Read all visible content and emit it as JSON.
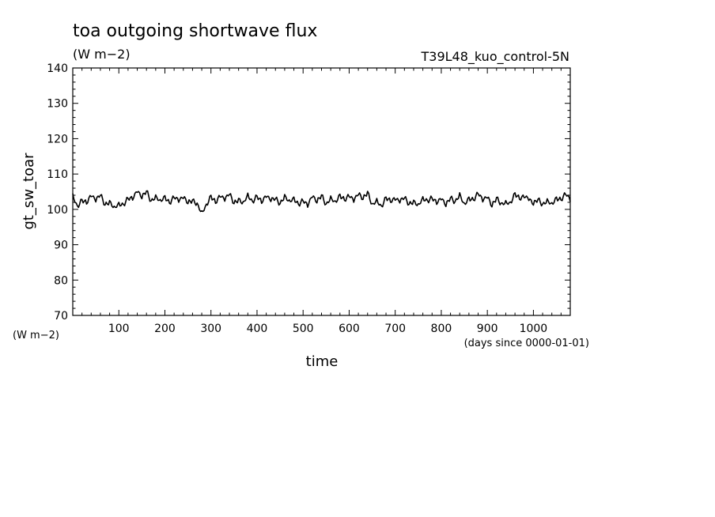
{
  "chart_data": {
    "type": "line",
    "title": "toa outgoing shortwave flux",
    "units": "(W m−2)",
    "run_label": "T39L48_kuo_control-5N",
    "ylabel": "gt_sw_toar",
    "y_units": "(W m−2)",
    "xlabel": "time",
    "x_units": "(days since 0000-01-01)",
    "xlim": [
      0,
      1080
    ],
    "ylim": [
      70,
      140
    ],
    "x_ticks": [
      100,
      200,
      300,
      400,
      500,
      600,
      700,
      800,
      900,
      1000
    ],
    "y_ticks": [
      70,
      80,
      90,
      100,
      110,
      120,
      130,
      140
    ],
    "grid": false,
    "legend": "none",
    "line_color": "#000000",
    "series": [
      {
        "x": [
          0,
          10,
          20,
          30,
          40,
          50,
          60,
          70,
          80,
          90,
          100,
          110,
          120,
          130,
          140,
          150,
          160,
          170,
          180,
          190,
          200,
          210,
          220,
          230,
          240,
          250,
          260,
          270,
          280,
          290,
          300,
          310,
          320,
          330,
          340,
          350,
          360,
          370,
          380,
          390,
          400,
          410,
          420,
          430,
          440,
          450,
          460,
          470,
          480,
          490,
          500,
          510,
          520,
          530,
          540,
          550,
          560,
          570,
          580,
          590,
          600,
          610,
          620,
          630,
          640,
          650,
          660,
          670,
          680,
          690,
          700,
          710,
          720,
          730,
          740,
          750,
          760,
          770,
          780,
          790,
          800,
          810,
          820,
          830,
          840,
          850,
          860,
          870,
          880,
          890,
          900,
          910,
          920,
          930,
          940,
          950,
          960,
          970,
          980,
          990,
          1000,
          1010,
          1020,
          1030,
          1040,
          1050,
          1060,
          1070,
          1080
        ],
        "values": [
          104.5,
          101.0,
          102.8,
          101.5,
          103.6,
          102.1,
          104.0,
          101.2,
          102.5,
          100.9,
          102.0,
          101.4,
          103.1,
          102.6,
          104.8,
          103.0,
          105.2,
          102.4,
          104.1,
          102.8,
          103.9,
          101.7,
          103.3,
          102.0,
          103.1,
          101.6,
          102.7,
          101.8,
          99.6,
          101.5,
          104.0,
          101.7,
          103.5,
          102.3,
          104.2,
          101.6,
          103.1,
          102.2,
          104.6,
          102.3,
          103.8,
          101.7,
          103.4,
          102.2,
          103.0,
          101.6,
          104.2,
          102.7,
          103.5,
          101.4,
          102.4,
          100.6,
          103.4,
          101.8,
          104.1,
          101.5,
          103.8,
          102.4,
          104.3,
          102.5,
          103.6,
          102.0,
          104.1,
          102.8,
          105.1,
          101.6,
          103.1,
          101.0,
          103.5,
          102.0,
          102.6,
          101.8,
          103.2,
          101.4,
          102.6,
          101.6,
          103.6,
          102.5,
          103.2,
          101.4,
          102.7,
          100.8,
          103.3,
          102.2,
          104.7,
          101.8,
          103.5,
          102.6,
          104.4,
          102.1,
          103.2,
          100.7,
          103.4,
          101.8,
          102.5,
          102.1,
          104.7,
          102.8,
          103.3,
          102.5,
          101.2,
          102.9,
          101.5,
          103.0,
          101.9,
          103.5,
          102.6,
          104.2,
          102.2
        ]
      }
    ]
  }
}
